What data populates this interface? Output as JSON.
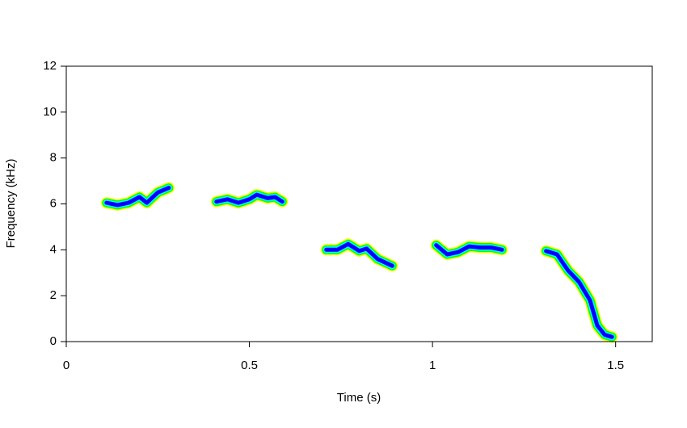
{
  "chart_data": {
    "type": "spectrogram",
    "x_label": "Time (s)",
    "y_label": "Frequency (kHz)",
    "xlim": [
      0,
      1.6
    ],
    "ylim": [
      0,
      12
    ],
    "xticks": [
      0,
      0.5,
      1,
      1.5
    ],
    "yticks": [
      0,
      2,
      4,
      6,
      8,
      10,
      12
    ],
    "colors": [
      "#ffff00",
      "#00ff00",
      "#00ffff",
      "#0000ff"
    ],
    "series": [
      {
        "x": [
          0.11,
          0.14,
          0.17,
          0.2,
          0.22,
          0.25,
          0.28
        ],
        "values": [
          6.05,
          5.95,
          6.05,
          6.3,
          6.05,
          6.5,
          6.7
        ]
      },
      {
        "x": [
          0.41,
          0.44,
          0.47,
          0.5,
          0.52,
          0.55,
          0.57,
          0.59
        ],
        "values": [
          6.1,
          6.2,
          6.05,
          6.2,
          6.4,
          6.25,
          6.3,
          6.1
        ]
      },
      {
        "x": [
          0.71,
          0.74,
          0.77,
          0.8,
          0.82,
          0.85,
          0.89
        ],
        "values": [
          4.0,
          4.0,
          4.25,
          3.95,
          4.05,
          3.6,
          3.3
        ]
      },
      {
        "x": [
          1.01,
          1.04,
          1.07,
          1.1,
          1.13,
          1.16,
          1.19
        ],
        "values": [
          4.2,
          3.8,
          3.9,
          4.15,
          4.1,
          4.1,
          4.0
        ]
      },
      {
        "x": [
          1.31,
          1.34,
          1.37,
          1.4,
          1.43,
          1.45,
          1.47,
          1.49
        ],
        "values": [
          3.95,
          3.8,
          3.1,
          2.6,
          1.8,
          0.7,
          0.3,
          0.2
        ]
      }
    ]
  }
}
